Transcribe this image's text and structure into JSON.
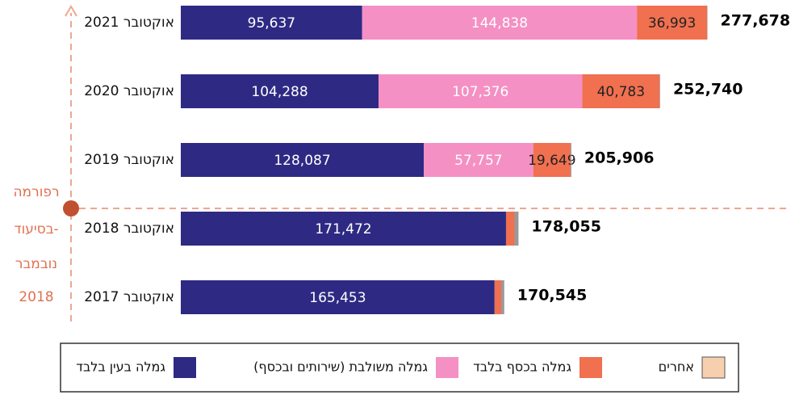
{
  "chart_data": {
    "type": "stacked_bar_horizontal",
    "categories": [
      "אוקטובר 2021",
      "אוקטובר 2020",
      "אוקטובר 2019",
      "אוקטובר 2018",
      "אוקטובר 2017"
    ],
    "series": [
      {
        "name": "גמלה בעין בלבד",
        "color": "#2e2a84",
        "values": [
          95637,
          104288,
          128087,
          171472,
          165453
        ],
        "value_labels": [
          "95,637",
          "104,288",
          "128,087",
          "171,472",
          "165,453"
        ]
      },
      {
        "name": "גמלה משולבת (שירותים ובכסף)",
        "color": "#f490c4",
        "values": [
          144838,
          107376,
          57757,
          0,
          0
        ],
        "value_labels": [
          "144,838",
          "107,376",
          "57,757",
          null,
          null
        ]
      },
      {
        "name": "גמלה בכסף בלבד",
        "color": "#f07050",
        "values": [
          36993,
          40783,
          19649,
          4500,
          3500
        ],
        "value_labels": [
          "36,993",
          "40,783",
          "19,649",
          null,
          null
        ]
      },
      {
        "name": "אחרים",
        "color": "#f6cfae",
        "values": [
          210,
          293,
          413,
          2083,
          1592
        ]
      }
    ],
    "totals": [
      277678,
      252740,
      205906,
      178055,
      170545
    ],
    "total_labels": [
      "277,678",
      "252,740",
      "205,906",
      "178,055",
      "170,545"
    ],
    "annotation": [
      "רפורמה",
      "בסיעוד-",
      "נובמבר",
      "2018"
    ],
    "legend": "bottom"
  }
}
